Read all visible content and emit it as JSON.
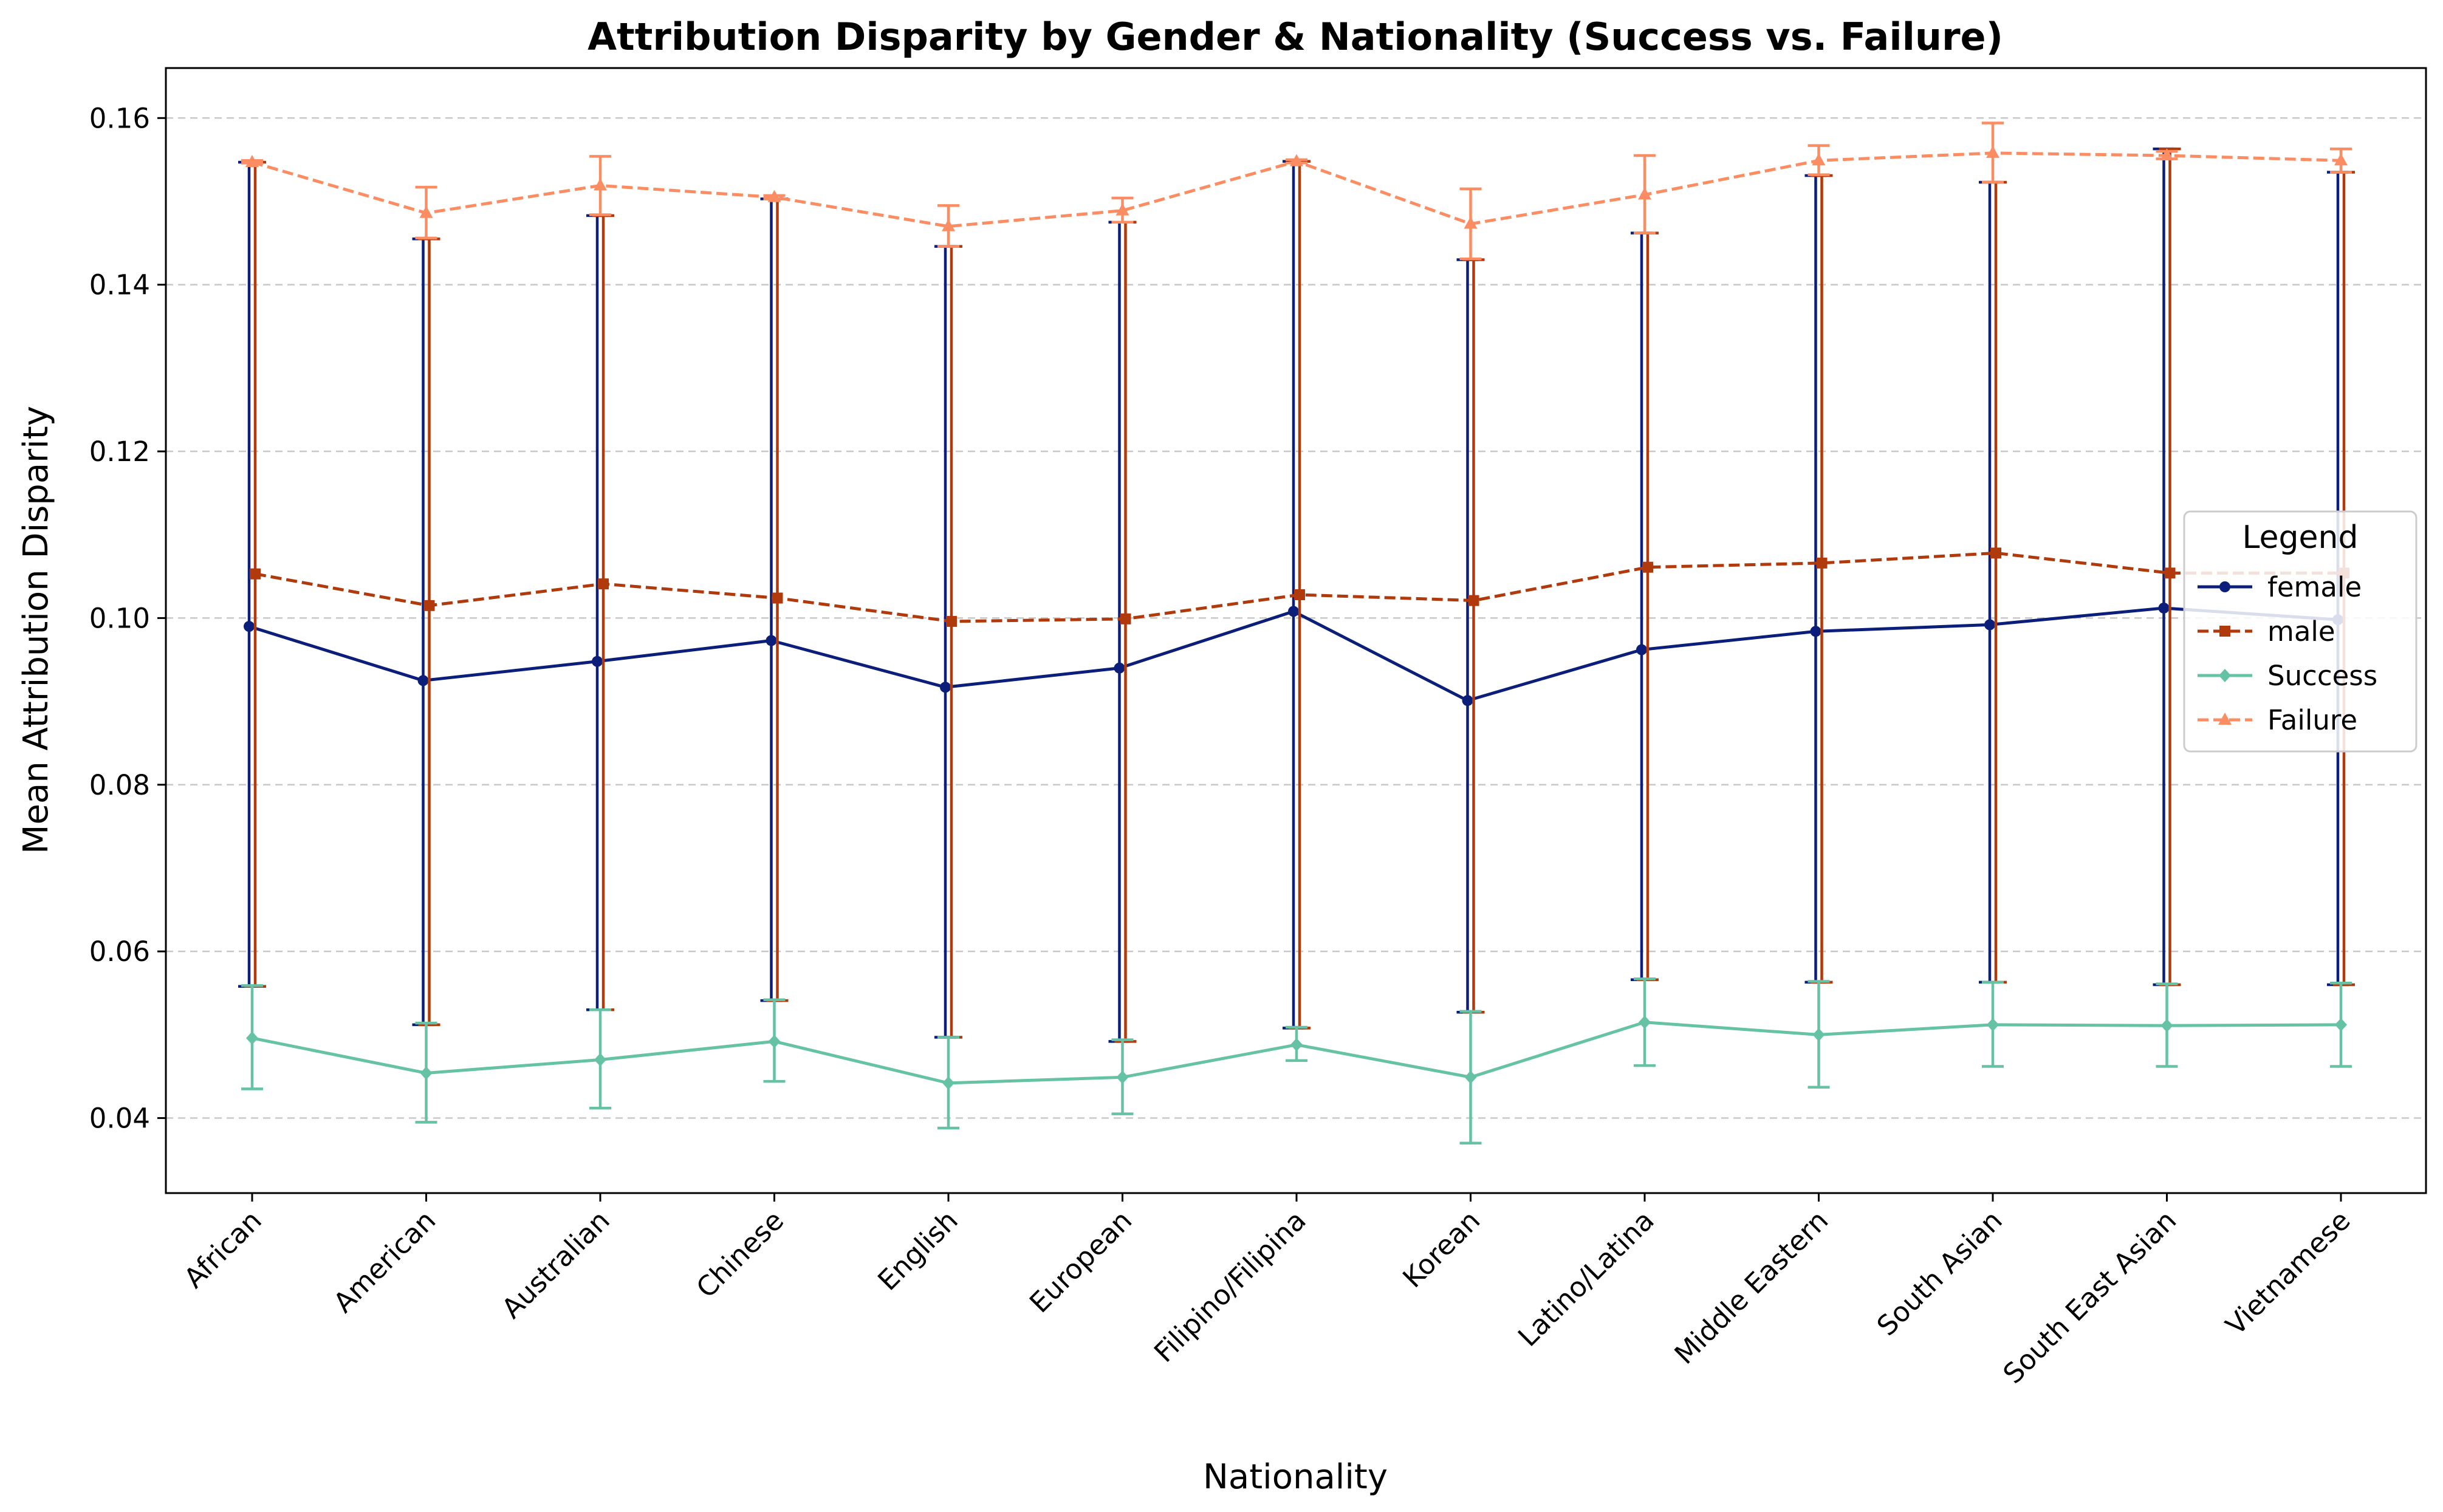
{
  "chart_data": {
    "type": "line",
    "title": "Attribution Disparity by Gender & Nationality (Success vs. Failure)",
    "xlabel": "Nationality",
    "ylabel": "Mean Attribution Disparity",
    "ylim": [
      0.031,
      0.166
    ],
    "yticks": [
      0.04,
      0.06,
      0.08,
      0.1,
      0.12,
      0.14,
      0.16
    ],
    "ytick_labels": [
      "0.04",
      "0.06",
      "0.08",
      "0.10",
      "0.12",
      "0.14",
      "0.16"
    ],
    "grid": "y-dashed",
    "legend": {
      "title": "Legend",
      "placement": "center-right"
    },
    "categories": [
      "African",
      "American",
      "Australian",
      "Chinese",
      "English",
      "European",
      "Filipino/Filipina",
      "Korean",
      "Latino/Latina",
      "Middle Eastern",
      "South Asian",
      "South East Asian",
      "Vietnamese"
    ],
    "series": [
      {
        "name": "female",
        "color": "#0b1f7a",
        "style": "solid",
        "marker": "circle",
        "values": [
          0.099,
          0.0925,
          0.0948,
          0.0973,
          0.0917,
          0.094,
          0.1008,
          0.0901,
          0.0962,
          0.0984,
          0.0992,
          0.1012,
          0.0998
        ],
        "err_low": [
          0.0558,
          0.0512,
          0.053,
          0.0541,
          0.0497,
          0.0492,
          0.0508,
          0.0527,
          0.0566,
          0.0563,
          0.0563,
          0.056,
          0.056
        ],
        "err_high": [
          0.1547,
          0.1455,
          0.1483,
          0.1503,
          0.1446,
          0.1475,
          0.1548,
          0.143,
          0.1462,
          0.1531,
          0.1523,
          0.1563,
          0.1535
        ]
      },
      {
        "name": "male",
        "color": "#b03a0c",
        "style": "dashed",
        "marker": "square",
        "values": [
          0.1053,
          0.1015,
          0.1041,
          0.1024,
          0.0996,
          0.0999,
          0.1028,
          0.1021,
          0.1061,
          0.1066,
          0.1078,
          0.1054,
          0.1054
        ],
        "err_low": [
          0.0558,
          0.0512,
          0.053,
          0.0541,
          0.0497,
          0.0492,
          0.0508,
          0.0527,
          0.0566,
          0.0563,
          0.0563,
          0.056,
          0.056
        ],
        "err_high": [
          0.1547,
          0.1455,
          0.1483,
          0.1503,
          0.1446,
          0.1475,
          0.1548,
          0.143,
          0.1462,
          0.1531,
          0.1523,
          0.1563,
          0.1535
        ]
      },
      {
        "name": "Success",
        "color": "#66c2a5",
        "style": "solid",
        "marker": "diamond",
        "values": [
          0.0496,
          0.0454,
          0.047,
          0.0492,
          0.0442,
          0.0449,
          0.0488,
          0.0449,
          0.0515,
          0.05,
          0.0512,
          0.0511,
          0.0512
        ],
        "err_low": [
          0.0435,
          0.0395,
          0.0412,
          0.0444,
          0.0388,
          0.0405,
          0.0469,
          0.037,
          0.0463,
          0.0437,
          0.0462,
          0.0462,
          0.0462
        ],
        "err_high": [
          0.0559,
          0.0514,
          0.053,
          0.0542,
          0.0497,
          0.0494,
          0.0509,
          0.0528,
          0.0567,
          0.0564,
          0.0563,
          0.0561,
          0.0562
        ]
      },
      {
        "name": "Failure",
        "color": "#fc8d62",
        "style": "dashed",
        "marker": "triangle",
        "values": [
          0.1547,
          0.1486,
          0.1519,
          0.1505,
          0.147,
          0.1489,
          0.1548,
          0.1473,
          0.1508,
          0.1549,
          0.1558,
          0.1555,
          0.1549
        ],
        "err_low": [
          0.1546,
          0.1456,
          0.1484,
          0.1503,
          0.1446,
          0.1475,
          0.1546,
          0.1431,
          0.1462,
          0.1532,
          0.1523,
          0.1551,
          0.1535
        ],
        "err_high": [
          0.1549,
          0.1517,
          0.1554,
          0.1507,
          0.1495,
          0.1504,
          0.155,
          0.1515,
          0.1555,
          0.1567,
          0.1594,
          0.156,
          0.1563
        ]
      }
    ]
  }
}
